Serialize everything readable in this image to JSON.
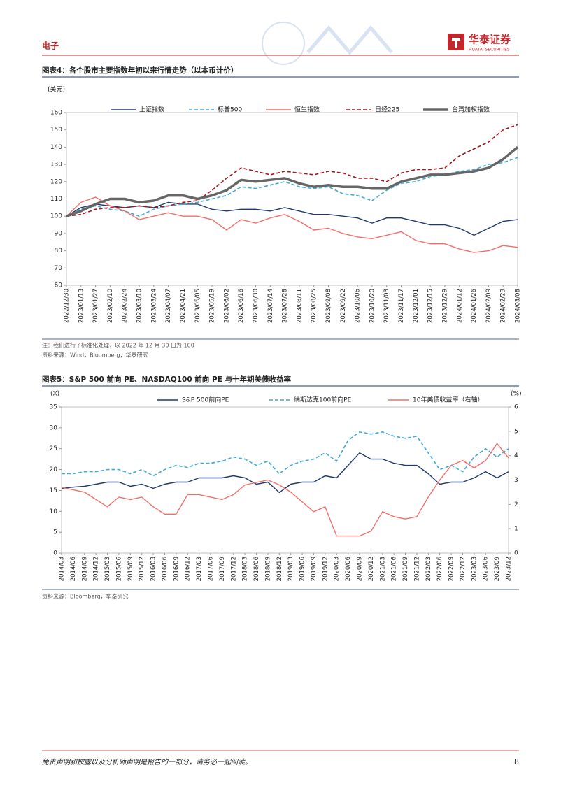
{
  "header": {
    "section": "电子",
    "logo_text": "华泰证券",
    "logo_sub": "HUATAI SECURITIES"
  },
  "chart_data": [
    {
      "type": "line",
      "title": "图表4：各个股市主要指数年初以来行情走势（以本币计价）",
      "y_label": "(美元)",
      "categories": [
        "2022/12/30",
        "2023/01/13",
        "2023/01/27",
        "2023/02/10",
        "2023/02/24",
        "2023/03/10",
        "2023/03/24",
        "2023/04/07",
        "2023/04/21",
        "2023/05/05",
        "2023/05/19",
        "2023/06/02",
        "2023/06/16",
        "2023/06/30",
        "2023/07/14",
        "2023/07/28",
        "2023/08/11",
        "2023/08/25",
        "2023/09/08",
        "2023/09/22",
        "2023/10/06",
        "2023/10/20",
        "2023/11/03",
        "2023/11/17",
        "2023/12/01",
        "2023/12/15",
        "2023/12/29",
        "2024/01/12",
        "2024/01/26",
        "2024/02/09",
        "2024/02/23",
        "2024/03/08"
      ],
      "series": [
        {
          "name": "上证指数",
          "color": "#1f3a6e",
          "style": "solid",
          "values": [
            100,
            105,
            107,
            106,
            105,
            106,
            105,
            108,
            107,
            107,
            104,
            103,
            104,
            104,
            103,
            105,
            103,
            101,
            101,
            100,
            99,
            96,
            99,
            99,
            97,
            95,
            95,
            93,
            89,
            93,
            97,
            98
          ]
        },
        {
          "name": "标普500",
          "color": "#3fa9d8",
          "style": "dashed",
          "values": [
            100,
            104,
            106,
            104,
            103,
            100,
            104,
            106,
            107,
            108,
            110,
            112,
            117,
            116,
            118,
            120,
            117,
            116,
            117,
            113,
            112,
            109,
            115,
            119,
            120,
            123,
            124,
            126,
            127,
            130,
            131,
            134
          ]
        },
        {
          "name": "恒生指数",
          "color": "#f0706a",
          "style": "solid",
          "values": [
            100,
            108,
            111,
            106,
            103,
            98,
            100,
            102,
            100,
            100,
            98,
            92,
            98,
            96,
            99,
            101,
            97,
            92,
            93,
            90,
            88,
            87,
            89,
            91,
            86,
            84,
            84,
            81,
            79,
            80,
            83,
            82
          ]
        },
        {
          "name": "日经225",
          "color": "#a5141d",
          "style": "dashed",
          "values": [
            100,
            101,
            104,
            105,
            105,
            106,
            105,
            106,
            108,
            109,
            115,
            122,
            128,
            126,
            124,
            126,
            125,
            124,
            126,
            125,
            122,
            122,
            120,
            125,
            127,
            127,
            128,
            135,
            139,
            143,
            150,
            153
          ]
        },
        {
          "name": "台湾加权指数",
          "color": "#666666",
          "style": "bold",
          "values": [
            100,
            103,
            107,
            110,
            110,
            108,
            109,
            112,
            112,
            110,
            112,
            115,
            121,
            120,
            121,
            122,
            119,
            117,
            118,
            117,
            117,
            116,
            116,
            120,
            122,
            124,
            124,
            125,
            126,
            128,
            133,
            140
          ]
        }
      ],
      "ylim": [
        60,
        160
      ],
      "yticks": [
        60,
        70,
        80,
        90,
        100,
        110,
        120,
        130,
        140,
        150,
        160
      ],
      "note": "注：我们进行了标准化处理，以 2022 年 12 月 30 日为 100",
      "source": "资料来源：Wind，Bloomberg，华泰研究"
    },
    {
      "type": "line",
      "title": "图表5：S&P 500 前向 PE、NASDAQ100 前向 PE 与十年期美债收益率",
      "y_label": "(X)",
      "y2_label": "(%)",
      "categories": [
        "2014/03",
        "2014/06",
        "2014/09",
        "2014/12",
        "2015/03",
        "2015/06",
        "2015/09",
        "2015/12",
        "2016/03",
        "2016/06",
        "2016/09",
        "2016/12",
        "2017/03",
        "2017/06",
        "2017/09",
        "2017/12",
        "2018/03",
        "2018/06",
        "2018/09",
        "2018/12",
        "2019/03",
        "2019/06",
        "2019/09",
        "2019/12",
        "2020/03",
        "2020/06",
        "2020/09",
        "2020/12",
        "2021/03",
        "2021/06",
        "2021/09",
        "2021/12",
        "2022/03",
        "2022/06",
        "2022/09",
        "2022/12",
        "2023/03",
        "2023/06",
        "2023/09",
        "2023/12"
      ],
      "series": [
        {
          "name": "S&P 500前向PE",
          "color": "#1f3a6e",
          "style": "solid",
          "values": [
            15.5,
            15.8,
            16,
            16.5,
            17,
            17,
            16,
            16.5,
            15.5,
            16.5,
            17,
            17,
            18,
            18,
            18,
            18.5,
            18,
            16.5,
            17,
            14.5,
            16.5,
            17,
            17,
            18.5,
            18,
            21,
            24,
            22.5,
            22.5,
            21.5,
            21,
            21,
            19,
            16.5,
            17,
            17,
            18,
            19.5,
            18,
            19.5
          ]
        },
        {
          "name": "纳斯达克100前向PE",
          "color": "#3fa9d8",
          "style": "dashed",
          "values": [
            19,
            19,
            19.5,
            19.5,
            20,
            20,
            19,
            20,
            18.5,
            20,
            21,
            20.5,
            21.5,
            21.5,
            22,
            23,
            22.5,
            21,
            22,
            19,
            21,
            22,
            22.5,
            24,
            22,
            27,
            29,
            28.5,
            29,
            28,
            27.5,
            28,
            24,
            20,
            21,
            19.5,
            23,
            25,
            23,
            25
          ]
        },
        {
          "name": "10年美债收益率（右轴）",
          "color": "#f0706a",
          "style": "solid",
          "axis": "y2",
          "values": [
            2.7,
            2.6,
            2.5,
            2.2,
            1.9,
            2.3,
            2.2,
            2.3,
            1.9,
            1.6,
            1.6,
            2.4,
            2.4,
            2.3,
            2.2,
            2.4,
            2.8,
            2.9,
            3.0,
            2.8,
            2.5,
            2.1,
            1.7,
            1.9,
            0.7,
            0.7,
            0.7,
            0.9,
            1.7,
            1.5,
            1.4,
            1.5,
            2.3,
            3.0,
            3.6,
            3.8,
            3.5,
            3.8,
            4.5,
            3.9
          ]
        }
      ],
      "ylim": [
        0,
        35
      ],
      "yticks": [
        0,
        5,
        10,
        15,
        20,
        25,
        30,
        35
      ],
      "y2lim": [
        0,
        6
      ],
      "y2ticks": [
        0,
        1,
        2,
        3,
        4,
        5,
        6
      ],
      "source": "资料来源：Bloomberg，华泰研究"
    }
  ],
  "footer": {
    "disclaimer": "免责声明和披露以及分析师声明是报告的一部分，请务必一起阅读。",
    "page": "8"
  }
}
